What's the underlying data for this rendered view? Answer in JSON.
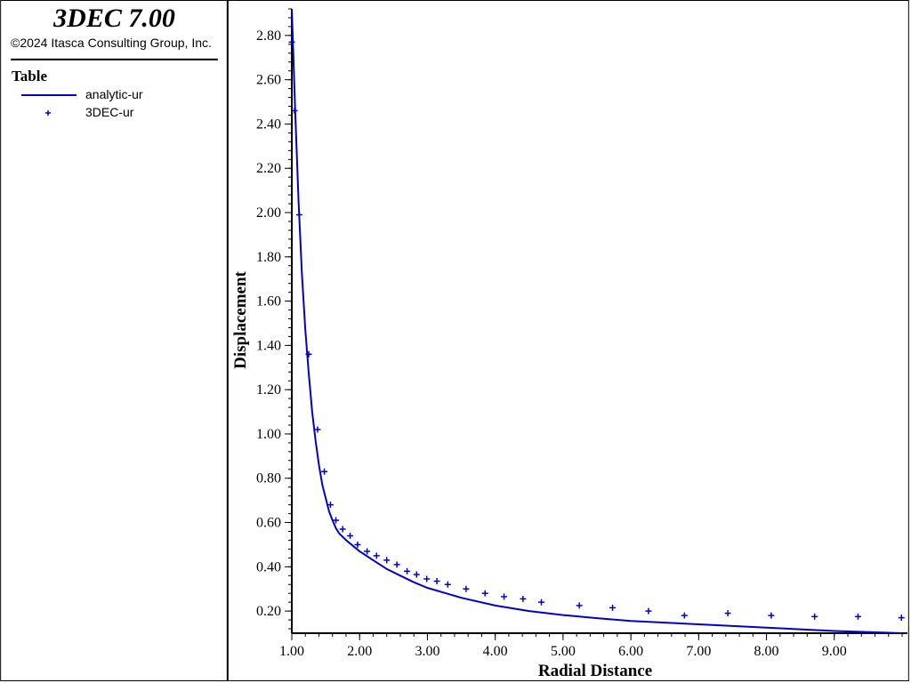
{
  "header": {
    "app_title": "3DEC 7.00",
    "copyright": "©2024 Itasca Consulting Group, Inc."
  },
  "legend": {
    "title": "Table",
    "items": [
      {
        "label": "analytic-ur",
        "symbol": "line",
        "color": "#0000cc"
      },
      {
        "label": "3DEC-ur",
        "symbol": "plus",
        "color": "#0000cc"
      }
    ]
  },
  "chart_data": {
    "type": "line",
    "title": "",
    "xlabel": "Radial Distance",
    "ylabel": "Displacement",
    "xlim": [
      1.0,
      10.0
    ],
    "ylim": [
      0.1,
      2.92
    ],
    "x_ticks": [
      "1.00",
      "2.00",
      "3.00",
      "4.00",
      "5.00",
      "6.00",
      "7.00",
      "8.00",
      "9.00"
    ],
    "y_ticks": [
      "0.20",
      "0.40",
      "0.60",
      "0.80",
      "1.00",
      "1.20",
      "1.40",
      "1.60",
      "1.80",
      "2.00",
      "2.20",
      "2.40",
      "2.60",
      "2.80"
    ],
    "grid": false,
    "legend_position": "left panel",
    "series": [
      {
        "name": "analytic-ur",
        "style": "line",
        "color": "#0000cc",
        "x": [
          1.0,
          1.05,
          1.1,
          1.15,
          1.2,
          1.25,
          1.3,
          1.35,
          1.4,
          1.45,
          1.5,
          1.55,
          1.6,
          1.65,
          1.7,
          1.8,
          1.9,
          2.0,
          2.2,
          2.4,
          2.6,
          2.8,
          3.0,
          3.5,
          4.0,
          4.5,
          5.0,
          5.5,
          6.0,
          7.0,
          8.0,
          9.0,
          10.0
        ],
        "y": [
          2.92,
          2.46,
          2.05,
          1.72,
          1.47,
          1.27,
          1.1,
          0.97,
          0.86,
          0.77,
          0.71,
          0.65,
          0.61,
          0.575,
          0.55,
          0.52,
          0.495,
          0.47,
          0.43,
          0.39,
          0.36,
          0.33,
          0.305,
          0.26,
          0.225,
          0.2,
          0.182,
          0.168,
          0.155,
          0.14,
          0.125,
          0.11,
          0.1
        ]
      },
      {
        "name": "3DEC-ur",
        "style": "plus",
        "color": "#0000cc",
        "x": [
          1.0,
          1.04,
          1.11,
          1.25,
          1.38,
          1.48,
          1.57,
          1.65,
          1.75,
          1.86,
          1.97,
          2.11,
          2.25,
          2.4,
          2.55,
          2.7,
          2.84,
          2.99,
          3.14,
          3.3,
          3.57,
          3.85,
          4.13,
          4.41,
          4.68,
          5.24,
          5.73,
          6.26,
          6.79,
          7.43,
          8.07,
          8.71,
          9.35,
          9.99
        ],
        "y": [
          2.77,
          2.46,
          1.99,
          1.36,
          1.02,
          0.83,
          0.68,
          0.61,
          0.57,
          0.54,
          0.5,
          0.47,
          0.45,
          0.43,
          0.41,
          0.38,
          0.365,
          0.345,
          0.335,
          0.32,
          0.3,
          0.28,
          0.265,
          0.255,
          0.24,
          0.225,
          0.215,
          0.2,
          0.18,
          0.19,
          0.18,
          0.175,
          0.175,
          0.17
        ]
      }
    ]
  }
}
